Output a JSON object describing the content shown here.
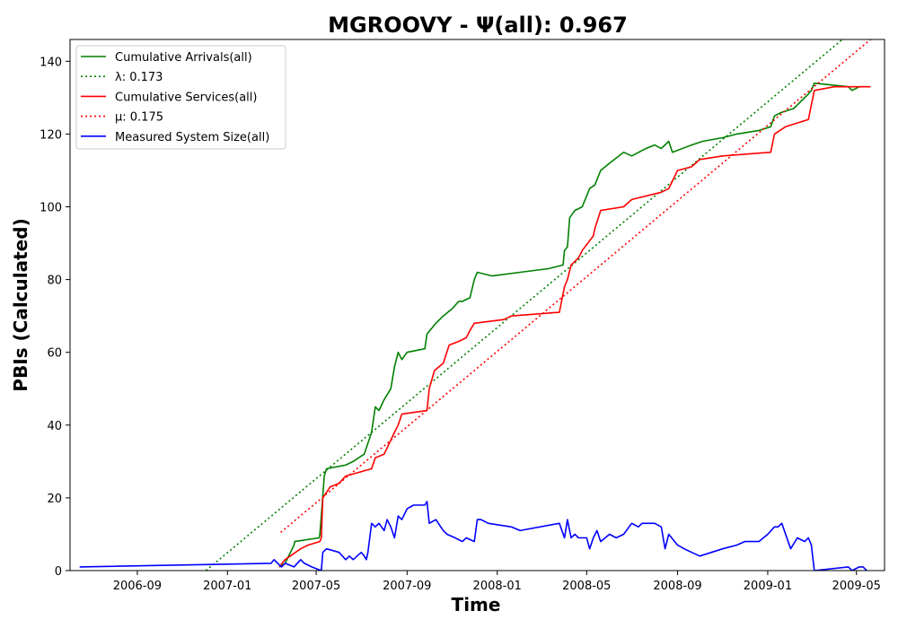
{
  "chart_data": {
    "type": "line",
    "title": "MGROOVY -  Ψ(all): 0.967",
    "xlabel": "Time",
    "ylabel": "PBIs (Calculated)",
    "xlim": [
      "2006-06-02",
      "2009-06-08"
    ],
    "ylim": [
      0,
      146
    ],
    "x_ticks": [
      "2006-09",
      "2007-01",
      "2007-05",
      "2007-09",
      "2008-01",
      "2008-05",
      "2008-09",
      "2009-01",
      "2009-05"
    ],
    "y_ticks": [
      0,
      20,
      40,
      60,
      80,
      100,
      120,
      140
    ],
    "grid": false,
    "legend_position": "top-left",
    "series": [
      {
        "name": "Cumulative Arrivals(all)",
        "color": "#008000",
        "style": "solid",
        "x": [
          "2007-03-12",
          "2007-03-20",
          "2007-04-01",
          "2007-04-02",
          "2007-05-05",
          "2007-05-06",
          "2007-05-09",
          "2007-05-12",
          "2007-05-15",
          "2007-06-10",
          "2007-06-20",
          "2007-07-05",
          "2007-07-15",
          "2007-07-20",
          "2007-07-25",
          "2007-08-01",
          "2007-08-10",
          "2007-08-15",
          "2007-08-20",
          "2007-08-25",
          "2007-09-01",
          "2007-09-25",
          "2007-09-28",
          "2007-10-10",
          "2007-10-20",
          "2007-11-01",
          "2007-11-10",
          "2007-11-15",
          "2007-11-25",
          "2007-12-01",
          "2007-12-05",
          "2007-12-25",
          "2008-02-01",
          "2008-03-10",
          "2008-03-30",
          "2008-04-01",
          "2008-04-05",
          "2008-04-08",
          "2008-04-15",
          "2008-04-25",
          "2008-05-05",
          "2008-05-12",
          "2008-05-20",
          "2008-06-01",
          "2008-06-20",
          "2008-07-01",
          "2008-07-20",
          "2008-08-01",
          "2008-08-10",
          "2008-08-20",
          "2008-08-25",
          "2008-09-20",
          "2008-10-05",
          "2008-11-01",
          "2008-11-20",
          "2008-12-20",
          "2009-01-05",
          "2009-01-10",
          "2009-01-20",
          "2009-02-05",
          "2009-02-25",
          "2009-03-01",
          "2009-03-05",
          "2009-04-20",
          "2009-04-25",
          "2009-05-05",
          "2009-05-15"
        ],
        "y": [
          1,
          2,
          7,
          8,
          9,
          10,
          18,
          26,
          28,
          29,
          30,
          32,
          38,
          45,
          44,
          47,
          50,
          56,
          60,
          58,
          60,
          61,
          65,
          68,
          70,
          72,
          74,
          74,
          75,
          80,
          82,
          81,
          82,
          83,
          84,
          88,
          89,
          97,
          99,
          100,
          105,
          106,
          110,
          112,
          115,
          114,
          116,
          117,
          116,
          118,
          115,
          117,
          118,
          119,
          120,
          121,
          122,
          125,
          126,
          127,
          131,
          132,
          134,
          133,
          132,
          133,
          133
        ]
      },
      {
        "name": "λ: 0.173",
        "color": "#008000",
        "style": "dotted",
        "x": [
          "2006-12-03",
          "2009-04-12"
        ],
        "y": [
          0,
          146
        ]
      },
      {
        "name": "Cumulative Services(all)",
        "color": "#ff0000",
        "style": "solid",
        "x": [
          "2007-03-12",
          "2007-03-20",
          "2007-04-10",
          "2007-04-20",
          "2007-05-06",
          "2007-05-08",
          "2007-05-10",
          "2007-05-20",
          "2007-06-01",
          "2007-06-10",
          "2007-07-15",
          "2007-07-20",
          "2007-08-01",
          "2007-08-15",
          "2007-08-20",
          "2007-08-25",
          "2007-09-28",
          "2007-10-01",
          "2007-10-08",
          "2007-10-20",
          "2007-10-28",
          "2007-11-10",
          "2007-11-20",
          "2007-11-25",
          "2007-12-01",
          "2008-01-10",
          "2008-01-20",
          "2008-03-25",
          "2008-04-01",
          "2008-04-05",
          "2008-04-10",
          "2008-04-20",
          "2008-04-25",
          "2008-05-10",
          "2008-05-12",
          "2008-05-20",
          "2008-06-20",
          "2008-07-01",
          "2008-08-10",
          "2008-08-20",
          "2008-09-01",
          "2008-09-20",
          "2008-10-01",
          "2008-11-01",
          "2009-01-05",
          "2009-01-10",
          "2009-01-25",
          "2009-02-25",
          "2009-03-05",
          "2009-04-01",
          "2009-04-25",
          "2009-05-20"
        ],
        "y": [
          1,
          3,
          6,
          7,
          8,
          9,
          20,
          23,
          24,
          26,
          28,
          31,
          32,
          38,
          40,
          43,
          44,
          50,
          55,
          57,
          62,
          63,
          64,
          66,
          68,
          69,
          70,
          71,
          78,
          80,
          84,
          86,
          88,
          92,
          94,
          99,
          100,
          102,
          104,
          105,
          110,
          111,
          113,
          114,
          115,
          120,
          122,
          124,
          132,
          133,
          133,
          133
        ]
      },
      {
        "name": "μ: 0.175",
        "color": "#ff0000",
        "style": "dotted",
        "x": [
          "2007-03-14",
          "2009-05-20"
        ],
        "y": [
          10.5,
          146
        ]
      },
      {
        "name": "Measured System Size(all)",
        "color": "#0000ff",
        "style": "solid",
        "x": [
          "2006-06-15",
          "2007-03-01",
          "2007-03-05",
          "2007-03-10",
          "2007-03-15",
          "2007-03-20",
          "2007-04-01",
          "2007-04-10",
          "2007-04-15",
          "2007-04-25",
          "2007-05-08",
          "2007-05-10",
          "2007-05-15",
          "2007-06-01",
          "2007-06-10",
          "2007-06-15",
          "2007-06-20",
          "2007-07-01",
          "2007-07-05",
          "2007-07-08",
          "2007-07-10",
          "2007-07-15",
          "2007-07-20",
          "2007-07-25",
          "2007-08-01",
          "2007-08-05",
          "2007-08-10",
          "2007-08-15",
          "2007-08-20",
          "2007-08-25",
          "2007-09-01",
          "2007-09-10",
          "2007-09-25",
          "2007-09-28",
          "2007-10-01",
          "2007-10-10",
          "2007-10-20",
          "2007-10-25",
          "2007-11-05",
          "2007-11-15",
          "2007-11-20",
          "2007-12-01",
          "2007-12-05",
          "2007-12-10",
          "2007-12-20",
          "2008-01-20",
          "2008-02-01",
          "2008-03-25",
          "2008-04-01",
          "2008-04-05",
          "2008-04-10",
          "2008-04-15",
          "2008-04-20",
          "2008-05-01",
          "2008-05-05",
          "2008-05-10",
          "2008-05-15",
          "2008-05-20",
          "2008-06-01",
          "2008-06-10",
          "2008-06-20",
          "2008-07-01",
          "2008-07-10",
          "2008-07-15",
          "2008-08-01",
          "2008-08-10",
          "2008-08-15",
          "2008-08-20",
          "2008-09-01",
          "2008-09-10",
          "2008-09-20",
          "2008-10-01",
          "2008-11-01",
          "2008-11-20",
          "2008-12-01",
          "2008-12-20",
          "2009-01-01",
          "2009-01-10",
          "2009-01-15",
          "2009-01-20",
          "2009-02-01",
          "2009-02-10",
          "2009-02-20",
          "2009-02-25",
          "2009-03-01",
          "2009-03-05",
          "2009-04-20",
          "2009-04-25",
          "2009-05-05",
          "2009-05-10",
          "2009-05-15"
        ],
        "y": [
          1,
          2,
          3,
          2,
          1,
          2,
          1,
          3,
          2,
          1,
          0,
          5,
          6,
          5,
          3,
          4,
          3,
          5,
          4,
          3,
          5,
          13,
          12,
          13,
          11,
          14,
          12,
          9,
          15,
          14,
          17,
          18,
          18,
          19,
          13,
          14,
          11,
          10,
          9,
          8,
          9,
          8,
          14,
          14,
          13,
          12,
          11,
          13,
          9,
          14,
          9,
          10,
          9,
          9,
          6,
          9,
          11,
          8,
          10,
          9,
          10,
          13,
          12,
          13,
          13,
          12,
          6,
          10,
          7,
          6,
          5,
          4,
          6,
          7,
          8,
          8,
          10,
          12,
          12,
          13,
          6,
          9,
          8,
          9,
          7,
          0,
          1,
          0,
          1,
          1,
          0
        ]
      }
    ]
  }
}
